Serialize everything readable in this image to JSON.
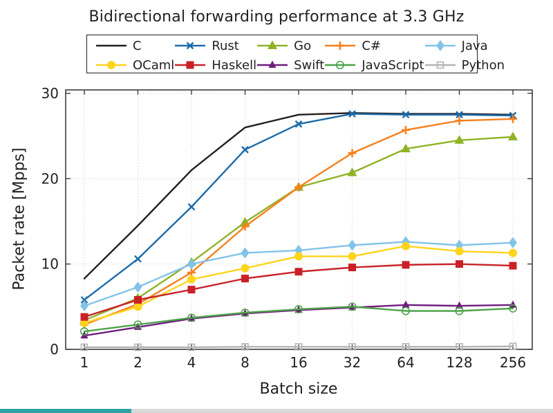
{
  "chart_data": {
    "type": "line",
    "title": "Bidirectional forwarding performance at 3.3 GHz",
    "xlabel": "Batch size",
    "ylabel": "Packet rate [Mpps]",
    "x_scale": "log2",
    "categories": [
      1,
      2,
      4,
      8,
      16,
      32,
      64,
      128,
      256
    ],
    "x_tick_labels": [
      "1",
      "2",
      "4",
      "8",
      "16",
      "32",
      "64",
      "128",
      "256"
    ],
    "ylim": [
      0,
      30
    ],
    "y_ticks": [
      0,
      10,
      20,
      30
    ],
    "grid": "dotted",
    "legend_position": "top",
    "colors": {
      "axis": "#231f20",
      "grid": "#c9c9c9",
      "background": "#ffffff"
    },
    "series": [
      {
        "name": "C",
        "color": "#231f20",
        "marker": "none",
        "values": [
          8.3,
          14.5,
          21.0,
          26.0,
          27.5,
          27.7,
          27.6,
          27.6,
          27.5
        ]
      },
      {
        "name": "Rust",
        "color": "#1c6ba9",
        "marker": "x",
        "values": [
          5.8,
          10.6,
          16.7,
          23.4,
          26.4,
          27.6,
          27.5,
          27.5,
          27.4
        ]
      },
      {
        "name": "Go",
        "color": "#8fb224",
        "marker": "triangle",
        "values": [
          3.4,
          6.0,
          10.2,
          14.9,
          19.0,
          20.7,
          23.5,
          24.5,
          24.9
        ]
      },
      {
        "name": "C#",
        "color": "#f5811e",
        "marker": "plus",
        "values": [
          2.9,
          5.3,
          9.0,
          14.4,
          19.0,
          23.0,
          25.7,
          26.8,
          27.0
        ]
      },
      {
        "name": "Java",
        "color": "#82c3e8",
        "marker": "diamond",
        "values": [
          5.1,
          7.3,
          10.0,
          11.3,
          11.6,
          12.2,
          12.6,
          12.2,
          12.5
        ]
      },
      {
        "name": "OCaml",
        "color": "#ffd41c",
        "marker": "circle",
        "values": [
          3.1,
          5.0,
          8.2,
          9.5,
          10.9,
          10.9,
          12.1,
          11.5,
          11.3
        ]
      },
      {
        "name": "Haskell",
        "color": "#ca2128",
        "marker": "square",
        "values": [
          3.8,
          5.8,
          7.0,
          8.3,
          9.1,
          9.6,
          9.9,
          10.0,
          9.8
        ]
      },
      {
        "name": "Swift",
        "color": "#6f1d7d",
        "marker": "triangle-small",
        "values": [
          1.6,
          2.6,
          3.6,
          4.2,
          4.6,
          4.9,
          5.2,
          5.1,
          5.2
        ]
      },
      {
        "name": "JavaScript",
        "color": "#4ea24b",
        "marker": "circle-open",
        "values": [
          2.1,
          2.9,
          3.7,
          4.3,
          4.7,
          5.0,
          4.5,
          4.5,
          4.8
        ]
      },
      {
        "name": "Python",
        "color": "#b3b3b3",
        "marker": "square-open",
        "values": [
          0.25,
          0.25,
          0.25,
          0.3,
          0.3,
          0.3,
          0.3,
          0.3,
          0.35
        ]
      }
    ]
  }
}
